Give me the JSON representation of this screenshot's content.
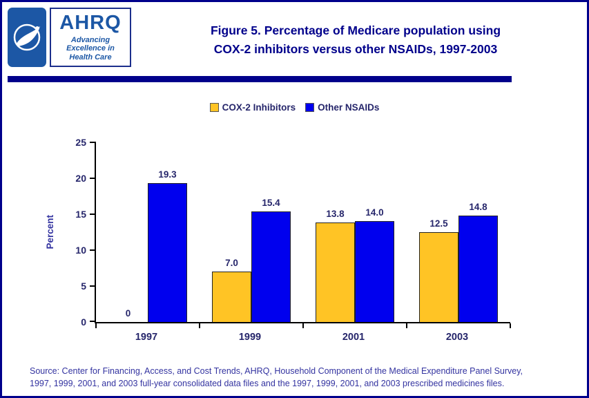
{
  "header": {
    "logo": {
      "hhs_name": "HHS emblem",
      "acronym": "AHRQ",
      "tagline": "Advancing\nExcellence in\nHealth Care"
    },
    "title_line1": "Figure 5. Percentage of Medicare population using",
    "title_line2": "COX-2 inhibitors versus other NSAIDs, 1997-2003"
  },
  "chart_data": {
    "type": "bar",
    "title": "Figure 5. Percentage of Medicare population using COX-2 inhibitors versus other NSAIDs, 1997-2003",
    "categories": [
      "1997",
      "1999",
      "2001",
      "2003"
    ],
    "series": [
      {
        "name": "COX-2 Inhibitors",
        "color": "#FFC425",
        "values": [
          0,
          7.0,
          13.8,
          12.5
        ],
        "labels": [
          "0",
          "7.0",
          "13.8",
          "12.5"
        ]
      },
      {
        "name": "Other NSAIDs",
        "color": "#0000EE",
        "values": [
          19.3,
          15.4,
          14.0,
          14.8
        ],
        "labels": [
          "19.3",
          "15.4",
          "14.0",
          "14.8"
        ]
      }
    ],
    "xlabel": "",
    "ylabel": "Percent",
    "ylim": [
      0,
      25
    ],
    "yticks": [
      0,
      5,
      10,
      15,
      20,
      25
    ],
    "grid": false,
    "legend_position": "top"
  },
  "footer": {
    "source_line1": "Source: Center for Financing, Access, and Cost Trends, AHRQ, Household Component of the Medical Expenditure Panel Survey,",
    "source_line2": "1997, 1999, 2001, and 2003 full-year consolidated data files and the 1997, 1999, 2001, and 2003 prescribed medicines files."
  },
  "colors": {
    "page_border": "#00008B",
    "divider_bar": "#00008B",
    "title_text": "#00008B",
    "axis_text": "#26266B",
    "source_text": "#3333A0"
  }
}
